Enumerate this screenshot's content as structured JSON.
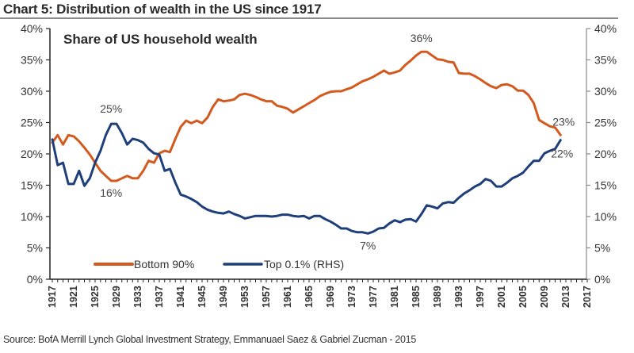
{
  "header": {
    "title": "Chart 5: Distribution of wealth in the US since 1917"
  },
  "footer": {
    "source": "Source: BofA Merrill Lynch Global Investment Strategy, Emmanuael Saez & Gabriel Zucman - 2015"
  },
  "colors": {
    "bottom90": "#d35a1e",
    "top01": "#1f3f7a",
    "axis": "#555555"
  },
  "chart_data": {
    "type": "line",
    "title": "Chart 5: Distribution of wealth in the US since 1917",
    "subtitle": "Share of US household wealth",
    "xlabel": "",
    "ylabel": "",
    "xlim": [
      1917,
      2017
    ],
    "ylim": [
      0,
      40
    ],
    "y2lim": [
      0,
      40
    ],
    "grid": false,
    "legend_position": "bottom-left",
    "x_ticks": [
      "1917",
      "1921",
      "1925",
      "1929",
      "1933",
      "1937",
      "1941",
      "1945",
      "1949",
      "1953",
      "1957",
      "1961",
      "1965",
      "1969",
      "1973",
      "1977",
      "1981",
      "1985",
      "1989",
      "1993",
      "1997",
      "2001",
      "2005",
      "2009",
      "2013",
      "2017"
    ],
    "y_ticks": [
      "0%",
      "5%",
      "10%",
      "15%",
      "20%",
      "25%",
      "30%",
      "35%",
      "40%"
    ],
    "y2_ticks": [
      "0%",
      "5%",
      "10%",
      "15%",
      "20%",
      "25%",
      "30%",
      "35%",
      "40%"
    ],
    "x": [
      1917,
      1918,
      1919,
      1920,
      1921,
      1922,
      1923,
      1924,
      1925,
      1926,
      1927,
      1928,
      1929,
      1930,
      1931,
      1932,
      1933,
      1934,
      1935,
      1936,
      1937,
      1938,
      1939,
      1940,
      1941,
      1942,
      1943,
      1944,
      1945,
      1946,
      1947,
      1948,
      1949,
      1950,
      1951,
      1952,
      1953,
      1954,
      1955,
      1956,
      1957,
      1958,
      1959,
      1960,
      1961,
      1962,
      1963,
      1964,
      1965,
      1966,
      1967,
      1968,
      1969,
      1970,
      1971,
      1972,
      1973,
      1974,
      1975,
      1976,
      1977,
      1978,
      1979,
      1980,
      1981,
      1982,
      1983,
      1984,
      1985,
      1986,
      1987,
      1988,
      1989,
      1990,
      1991,
      1992,
      1993,
      1994,
      1995,
      1996,
      1997,
      1998,
      1999,
      2000,
      2001,
      2002,
      2003,
      2004,
      2005,
      2006,
      2007,
      2008,
      2009,
      2010,
      2011,
      2012
    ],
    "series": [
      {
        "name": "Bottom 90%",
        "axis": "left",
        "color": "#d35a1e",
        "values": [
          21.8,
          23,
          21.5,
          23,
          22.8,
          22,
          21,
          19.9,
          18.6,
          17.3,
          16.5,
          15.7,
          15.7,
          16.1,
          16.5,
          16.1,
          16.1,
          17.3,
          18.9,
          18.6,
          20.1,
          20.5,
          20.3,
          22.4,
          24.3,
          25.3,
          24.9,
          25.3,
          24.9,
          25.8,
          27.5,
          28.7,
          28.4,
          28.5,
          28.7,
          29.4,
          29.6,
          29.4,
          29.1,
          28.7,
          28.4,
          28.4,
          27.7,
          27.5,
          27.2,
          26.6,
          27.1,
          27.6,
          28.1,
          28.6,
          29.2,
          29.6,
          29.9,
          30,
          30,
          30.3,
          30.6,
          31.1,
          31.6,
          31.9,
          32.3,
          32.8,
          33.3,
          32.8,
          33,
          33.3,
          34.2,
          34.9,
          35.7,
          36.3,
          36.3,
          35.7,
          35.1,
          35,
          34.7,
          34.6,
          32.9,
          32.8,
          32.8,
          32.4,
          31.9,
          31.3,
          30.8,
          30.5,
          31,
          31.1,
          30.8,
          30.1,
          30.1,
          29.4,
          28.1,
          25.4,
          24.9,
          24.4,
          24.2,
          23
        ]
      },
      {
        "name": "Top 0.1% (RHS)",
        "axis": "right",
        "color": "#1f3f7a",
        "values": [
          22.3,
          18.2,
          18.6,
          15.2,
          15.2,
          17.3,
          14.9,
          16.1,
          18.6,
          20.5,
          23,
          24.8,
          24.8,
          23.3,
          21.5,
          22.4,
          22.2,
          21.8,
          20.8,
          20.1,
          19.9,
          17.3,
          17.6,
          15.4,
          13.5,
          13.2,
          12.8,
          12.3,
          11.6,
          11.1,
          10.8,
          10.6,
          10.5,
          10.8,
          10.4,
          10.1,
          9.7,
          9.9,
          10.1,
          10.1,
          10.1,
          10,
          10.1,
          10.3,
          10.3,
          10.1,
          10,
          10.1,
          9.7,
          10.1,
          10.1,
          9.6,
          9.2,
          8.7,
          8.1,
          8.1,
          7.7,
          7.5,
          7.5,
          7.3,
          7.6,
          8.1,
          8.2,
          8.9,
          9.4,
          9.1,
          9.5,
          9.6,
          9.2,
          10.4,
          11.8,
          11.6,
          11.3,
          12.1,
          12.3,
          12.2,
          13,
          13.7,
          14.2,
          14.8,
          15.2,
          16,
          15.7,
          14.8,
          14.8,
          15.4,
          16.1,
          16.5,
          17,
          18,
          18.9,
          18.9,
          20.1,
          20.5,
          20.8,
          22.2
        ]
      }
    ],
    "annotations": [
      {
        "text": "25%",
        "x": 1928,
        "y": 24.8,
        "series": "Top 0.1% (RHS)"
      },
      {
        "text": "16%",
        "x": 1928,
        "y": 15.7,
        "series": "Bottom 90%"
      },
      {
        "text": "36%",
        "x": 1986,
        "y": 36.3,
        "series": "Bottom 90%"
      },
      {
        "text": "7%",
        "x": 1976,
        "y": 7.3,
        "series": "Top 0.1% (RHS)"
      },
      {
        "text": "23%",
        "x": 2012,
        "y": 23,
        "series": "Bottom 90%"
      },
      {
        "text": "22%",
        "x": 2012,
        "y": 22.2,
        "series": "Top 0.1% (RHS)"
      }
    ]
  }
}
